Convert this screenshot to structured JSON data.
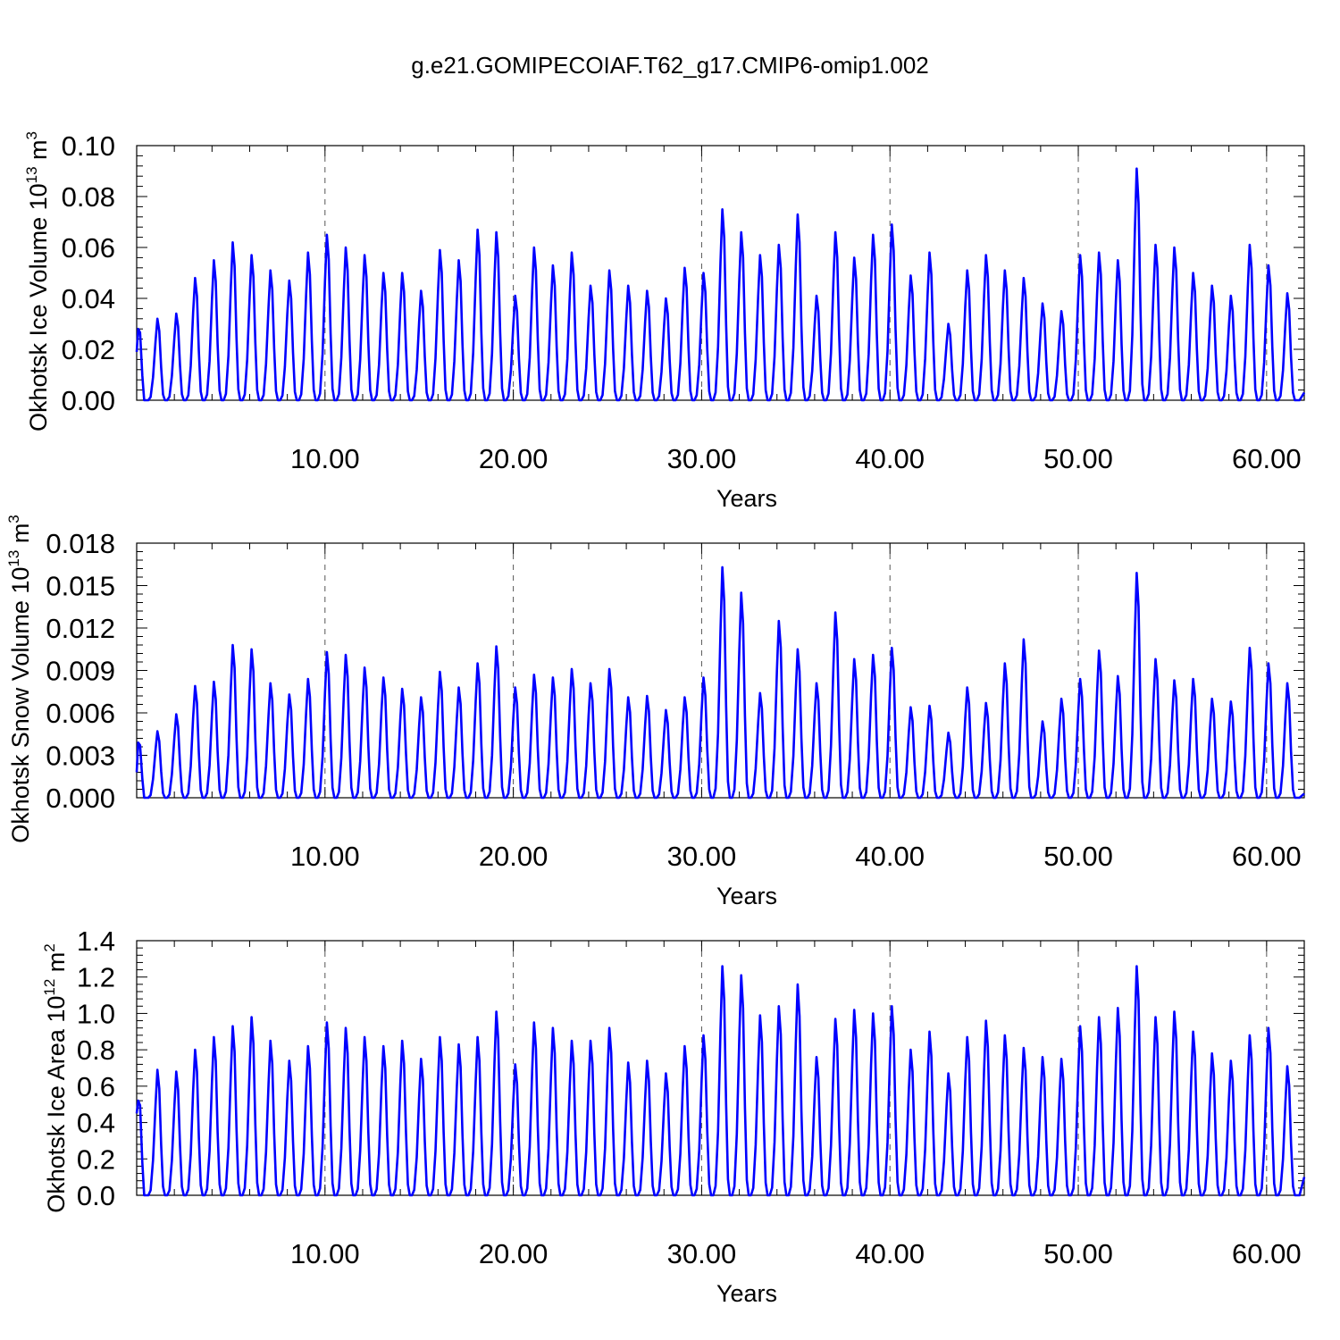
{
  "figure": {
    "title": "g.e21.GOMIPECOIAF.T62_g17.CMIP6-omip1.002"
  },
  "style": {
    "line_color": "#0000ff",
    "grid_color": "#555555"
  },
  "chart_data": [
    {
      "type": "line",
      "ylabel": "Okhotsk Ice Volume 10",
      "ylabel_exp": "13",
      "ylabel_unit": " m",
      "ylabel_unit_exp": "3",
      "xlabel": "Years",
      "xlim": [
        0,
        62
      ],
      "ylim": [
        0,
        0.1
      ],
      "yticks": [
        "0.00",
        "0.02",
        "0.04",
        "0.06",
        "0.08",
        "0.10"
      ],
      "xticks": [
        "10.00",
        "20.00",
        "30.00",
        "40.00",
        "50.00",
        "60.00"
      ],
      "grid": "dashed vertical lines at major x ticks",
      "series": [
        {
          "start": 0.019,
          "start_peak": 0.028,
          "peaks": [
            0.032,
            0.034,
            0.048,
            0.055,
            0.062,
            0.057,
            0.051,
            0.047,
            0.058,
            0.065,
            0.06,
            0.057,
            0.05,
            0.05,
            0.043,
            0.059,
            0.055,
            0.067,
            0.066,
            0.041,
            0.06,
            0.053,
            0.058,
            0.045,
            0.051,
            0.045,
            0.043,
            0.04,
            0.052,
            0.05,
            0.075,
            0.066,
            0.057,
            0.061,
            0.073,
            0.041,
            0.066,
            0.056,
            0.065,
            0.069,
            0.049,
            0.058,
            0.03,
            0.051,
            0.057,
            0.051,
            0.048,
            0.038,
            0.035,
            0.057,
            0.058,
            0.055,
            0.091,
            0.061,
            0.06,
            0.05,
            0.045,
            0.041,
            0.061,
            0.053,
            0.042
          ],
          "end": 0.003
        }
      ]
    },
    {
      "type": "line",
      "ylabel": "Okhotsk Snow Volume 10",
      "ylabel_exp": "13",
      "ylabel_unit": " m",
      "ylabel_unit_exp": "3",
      "xlabel": "Years",
      "xlim": [
        0,
        62
      ],
      "ylim": [
        0,
        0.018
      ],
      "yticks": [
        "0.000",
        "0.003",
        "0.006",
        "0.009",
        "0.012",
        "0.015",
        "0.018"
      ],
      "xticks": [
        "10.00",
        "20.00",
        "30.00",
        "40.00",
        "50.00",
        "60.00"
      ],
      "grid": "dashed vertical lines at major x ticks",
      "series": [
        {
          "start": 0.0018,
          "start_peak": 0.0039,
          "peaks": [
            0.0047,
            0.0059,
            0.0079,
            0.0082,
            0.0108,
            0.0105,
            0.0081,
            0.0073,
            0.0084,
            0.0103,
            0.0101,
            0.0092,
            0.0085,
            0.0077,
            0.0071,
            0.0089,
            0.0078,
            0.0095,
            0.0107,
            0.0078,
            0.0087,
            0.0085,
            0.0091,
            0.0081,
            0.0091,
            0.0071,
            0.0072,
            0.0062,
            0.0071,
            0.0085,
            0.0163,
            0.0145,
            0.0074,
            0.0125,
            0.0105,
            0.0081,
            0.0131,
            0.0098,
            0.0101,
            0.0106,
            0.0064,
            0.0065,
            0.0046,
            0.0078,
            0.0067,
            0.0095,
            0.0112,
            0.0054,
            0.007,
            0.0084,
            0.0104,
            0.0086,
            0.0159,
            0.0098,
            0.0083,
            0.0084,
            0.007,
            0.0068,
            0.0106,
            0.0095,
            0.0081
          ],
          "end": 0.0003
        }
      ]
    },
    {
      "type": "line",
      "ylabel": "Okhotsk Ice Area 10",
      "ylabel_exp": "12",
      "ylabel_unit": " m",
      "ylabel_unit_exp": "2",
      "xlabel": "Years",
      "xlim": [
        0,
        62
      ],
      "ylim": [
        0,
        1.4
      ],
      "yticks": [
        "0.0",
        "0.2",
        "0.4",
        "0.6",
        "0.8",
        "1.0",
        "1.2",
        "1.4"
      ],
      "xticks": [
        "10.00",
        "20.00",
        "30.00",
        "40.00",
        "50.00",
        "60.00"
      ],
      "grid": "dashed vertical lines at major x ticks",
      "series": [
        {
          "start": 0.45,
          "start_peak": 0.52,
          "peaks": [
            0.69,
            0.68,
            0.8,
            0.87,
            0.93,
            0.98,
            0.85,
            0.74,
            0.82,
            0.95,
            0.92,
            0.87,
            0.82,
            0.85,
            0.75,
            0.87,
            0.83,
            0.87,
            1.01,
            0.72,
            0.95,
            0.92,
            0.85,
            0.85,
            0.92,
            0.73,
            0.74,
            0.67,
            0.82,
            0.88,
            1.26,
            1.21,
            0.99,
            1.04,
            1.16,
            0.76,
            0.97,
            1.02,
            1.0,
            1.04,
            0.8,
            0.9,
            0.67,
            0.87,
            0.96,
            0.88,
            0.81,
            0.76,
            0.75,
            0.93,
            0.98,
            1.03,
            1.26,
            0.98,
            1.01,
            0.9,
            0.78,
            0.74,
            0.88,
            0.92,
            0.71
          ],
          "end": 0.1
        }
      ]
    }
  ]
}
